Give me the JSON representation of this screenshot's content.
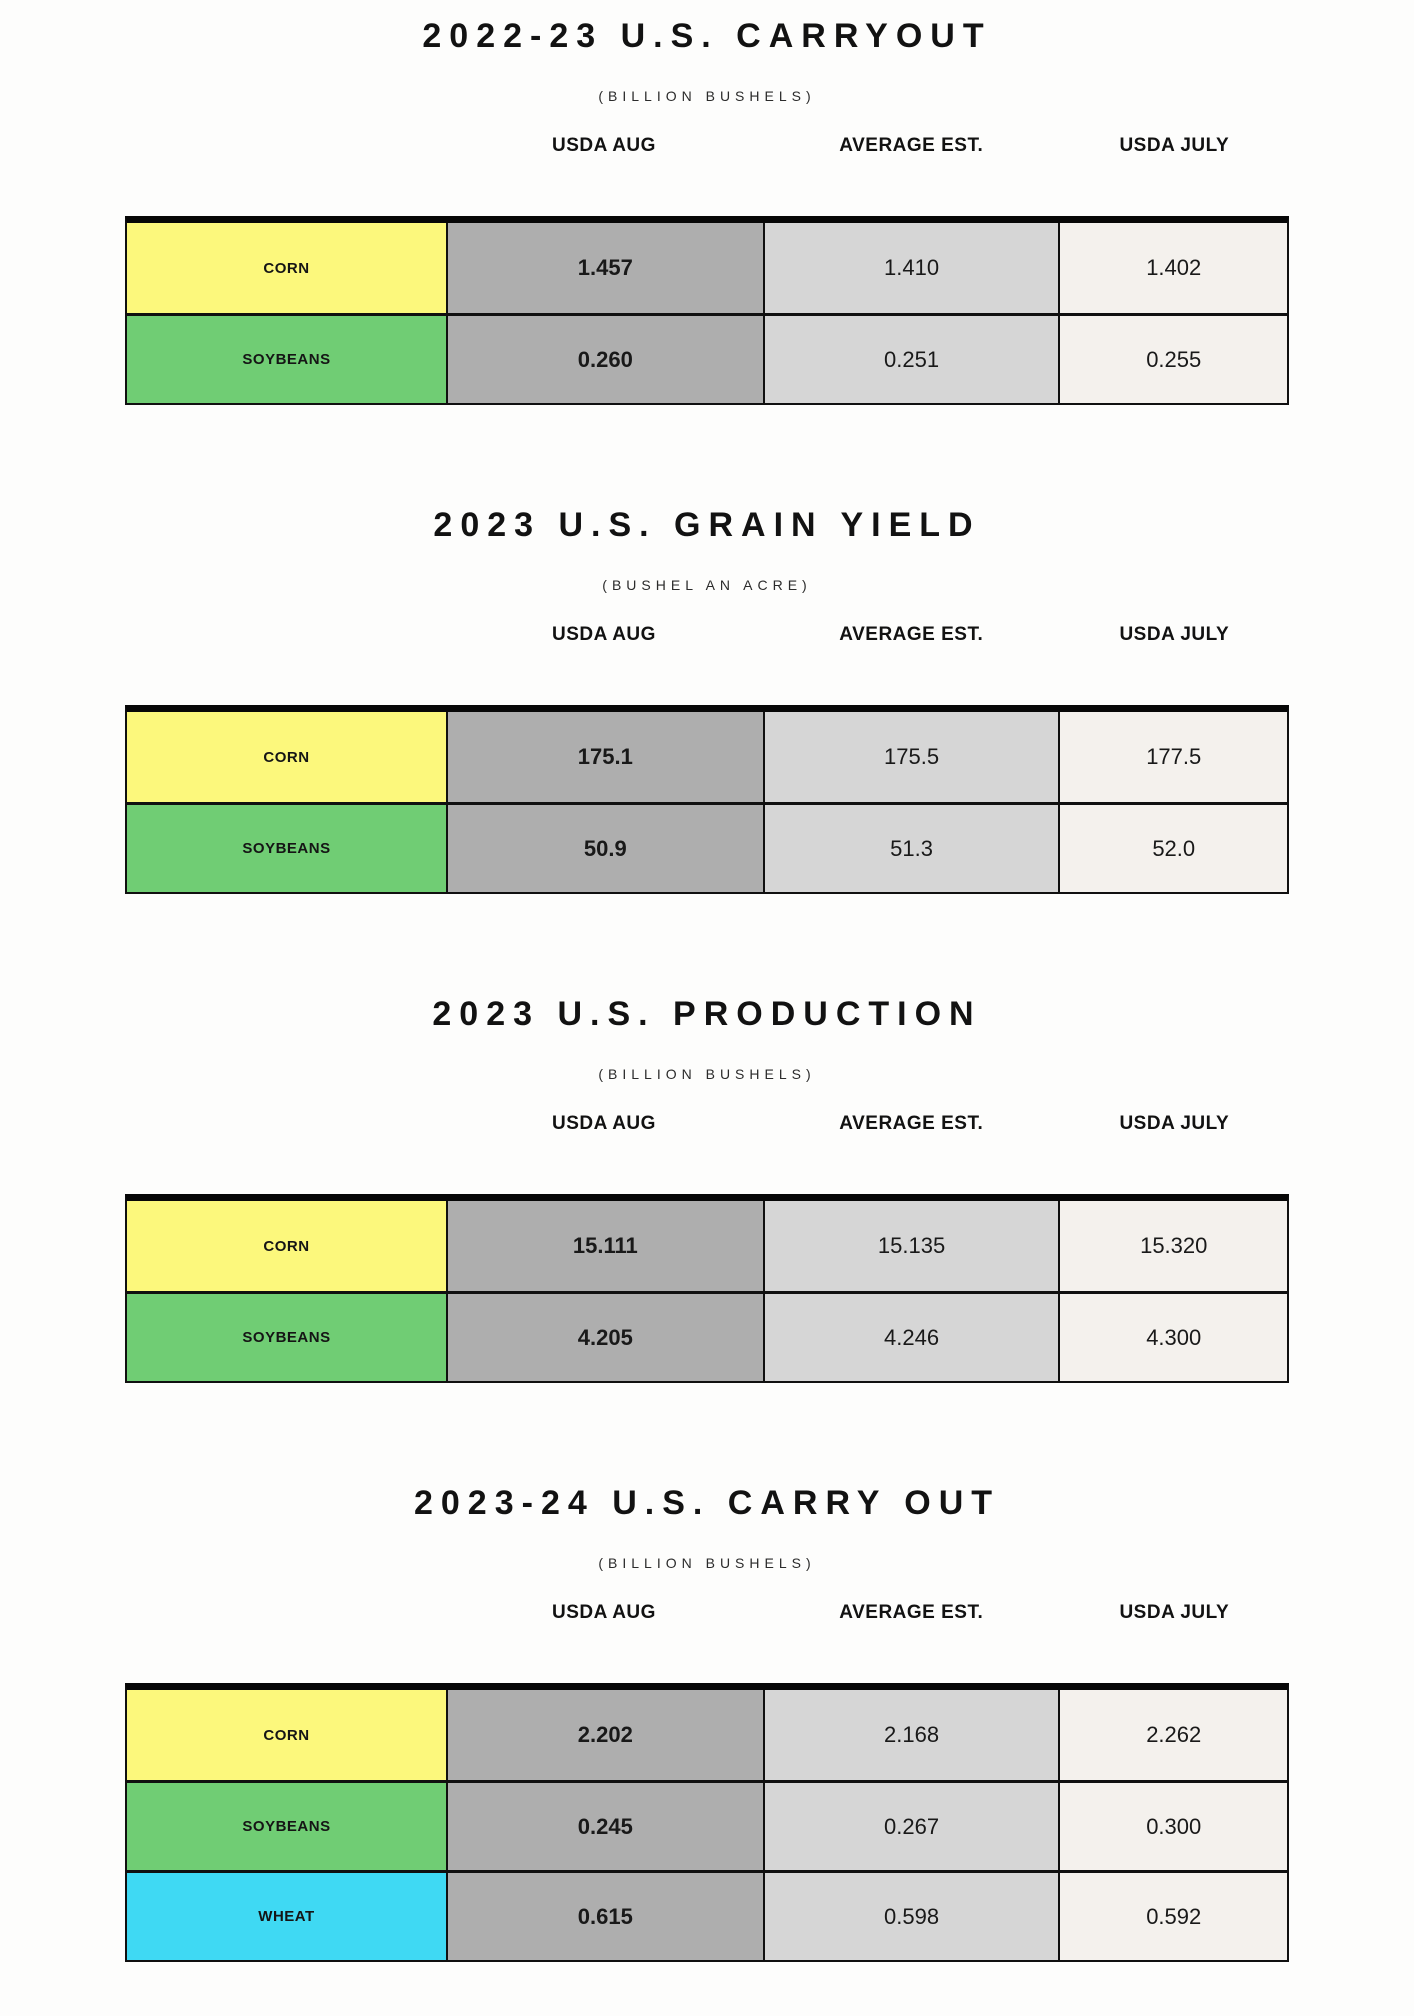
{
  "page_background": "#fdfdfc",
  "colors": {
    "corn": "#fcf87c",
    "soybeans": "#70cd74",
    "wheat": "#3fd9f3",
    "usda_aug_column": "#aeaeae",
    "average_est_column": "#d6d6d6",
    "usda_july_column": "#f4f1ed",
    "border": "#101010"
  },
  "chart_data": [
    {
      "type": "table",
      "title": "2022-23 U.S. CARRYOUT",
      "subtitle": "(BILLION BUSHELS)",
      "columns": [
        "USDA AUG",
        "AVERAGE EST.",
        "USDA JULY"
      ],
      "rows": [
        {
          "label": "CORN",
          "row_color": "corn",
          "values": [
            "1.457",
            "1.410",
            "1.402"
          ]
        },
        {
          "label": "SOYBEANS",
          "row_color": "soybeans",
          "values": [
            "0.260",
            "0.251",
            "0.255"
          ]
        }
      ]
    },
    {
      "type": "table",
      "title": "2023 U.S. GRAIN YIELD",
      "subtitle": "(BUSHEL AN ACRE)",
      "columns": [
        "USDA AUG",
        "AVERAGE EST.",
        "USDA JULY"
      ],
      "rows": [
        {
          "label": "CORN",
          "row_color": "corn",
          "values": [
            "175.1",
            "175.5",
            "177.5"
          ]
        },
        {
          "label": "SOYBEANS",
          "row_color": "soybeans",
          "values": [
            "50.9",
            "51.3",
            "52.0"
          ]
        }
      ]
    },
    {
      "type": "table",
      "title": "2023 U.S. PRODUCTION",
      "subtitle": "(BILLION BUSHELS)",
      "columns": [
        "USDA AUG",
        "AVERAGE EST.",
        "USDA JULY"
      ],
      "rows": [
        {
          "label": "CORN",
          "row_color": "corn",
          "values": [
            "15.111",
            "15.135",
            "15.320"
          ]
        },
        {
          "label": "SOYBEANS",
          "row_color": "soybeans",
          "values": [
            "4.205",
            "4.246",
            "4.300"
          ]
        }
      ]
    },
    {
      "type": "table",
      "title": "2023-24 U.S. CARRY OUT",
      "subtitle": "(BILLION BUSHELS)",
      "columns": [
        "USDA AUG",
        "AVERAGE EST.",
        "USDA JULY"
      ],
      "rows": [
        {
          "label": "CORN",
          "row_color": "corn",
          "values": [
            "2.202",
            "2.168",
            "2.262"
          ]
        },
        {
          "label": "SOYBEANS",
          "row_color": "soybeans",
          "values": [
            "0.245",
            "0.267",
            "0.300"
          ]
        },
        {
          "label": "WHEAT",
          "row_color": "wheat",
          "values": [
            "0.615",
            "0.598",
            "0.592"
          ]
        }
      ]
    }
  ]
}
